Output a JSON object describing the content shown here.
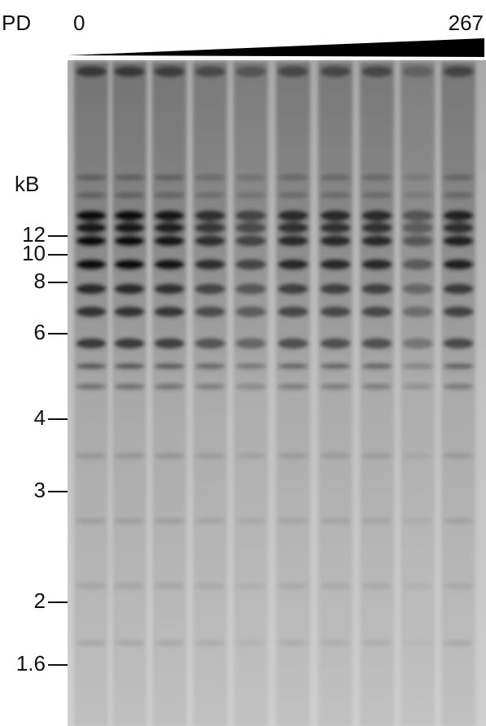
{
  "header": {
    "label": "PD",
    "start": "0",
    "end": "267"
  },
  "axis": {
    "unit": "kB",
    "markers": [
      "12",
      "10",
      "8",
      "6",
      "4",
      "3",
      "2",
      "1.6"
    ]
  }
}
